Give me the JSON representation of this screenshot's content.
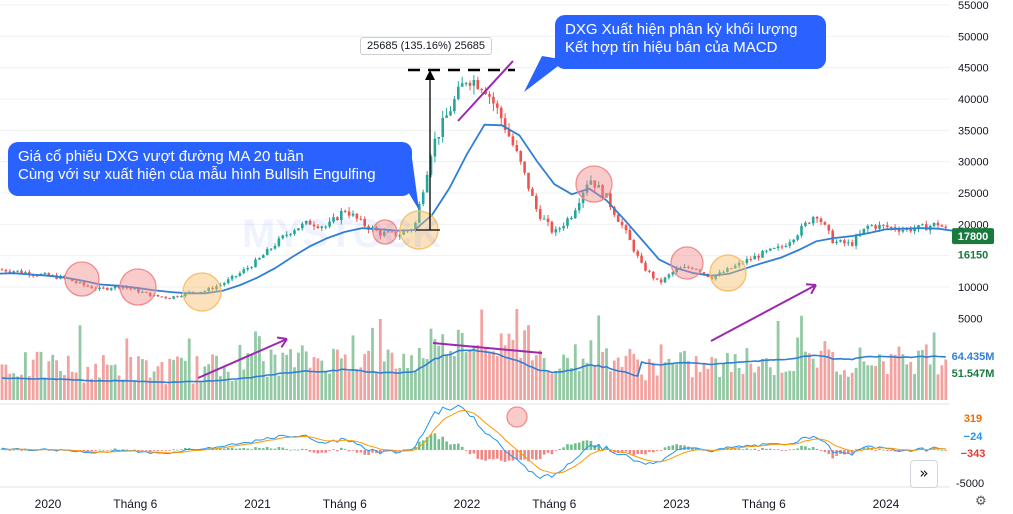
{
  "chart_data": {
    "type": "candlestick",
    "ticker": "DXG",
    "price_axis": {
      "ticks": [
        5000,
        10000,
        15000,
        20000,
        25000,
        30000,
        35000,
        40000,
        45000,
        50000,
        55000
      ],
      "tick_labels": [
        "5000",
        "10000",
        "15000",
        "20000",
        "25000",
        "30000",
        "35000",
        "40000",
        "45000",
        "50000",
        "55000"
      ]
    },
    "macd_axis": {
      "ticks": [
        -5000
      ],
      "tick_labels": [
        "-5000"
      ]
    },
    "x_axis": {
      "ticks": [
        "2020-01",
        "2020-06",
        "2021-01",
        "2021-06",
        "2022-01",
        "2022-06",
        "2023-01",
        "2023-06",
        "2024-01"
      ],
      "tick_labels": [
        "2020",
        "Tháng 6",
        "2021",
        "Tháng 6",
        "2022",
        "Tháng 6",
        "2023",
        "Tháng 6",
        "2024"
      ]
    },
    "price_series": {
      "dates": [
        "2019-10",
        "2019-11",
        "2019-12",
        "2020-01",
        "2020-02",
        "2020-03",
        "2020-04",
        "2020-05",
        "2020-06",
        "2020-07",
        "2020-08",
        "2020-09",
        "2020-10",
        "2020-11",
        "2020-12",
        "2021-01",
        "2021-02",
        "2021-03",
        "2021-04",
        "2021-05",
        "2021-06",
        "2021-07",
        "2021-08",
        "2021-09",
        "2021-10",
        "2021-11",
        "2021-12",
        "2022-01",
        "2022-02",
        "2022-03",
        "2022-04",
        "2022-05",
        "2022-06",
        "2022-07",
        "2022-08",
        "2022-09",
        "2022-10",
        "2022-11",
        "2022-12",
        "2023-01",
        "2023-02",
        "2023-03",
        "2023-04",
        "2023-05",
        "2023-06",
        "2023-07",
        "2023-08",
        "2023-09",
        "2023-10",
        "2023-11",
        "2023-12",
        "2024-01",
        "2024-02",
        "2024-03",
        "2024-04",
        "2024-05"
      ],
      "close": [
        12800,
        12600,
        12200,
        11800,
        11400,
        10300,
        9600,
        10200,
        9500,
        8600,
        8300,
        9100,
        9400,
        10500,
        12200,
        14200,
        16800,
        19200,
        20300,
        19600,
        22400,
        20100,
        18600,
        18300,
        19600,
        32400,
        38200,
        43500,
        42100,
        36800,
        30200,
        22200,
        18500,
        21600,
        27500,
        24200,
        19200,
        13500,
        10600,
        12800,
        13200,
        11500,
        12800,
        14200,
        15400,
        16300,
        18800,
        21800,
        17200,
        16800,
        19800,
        19600,
        19200,
        19400,
        20100,
        17800
      ],
      "ma20": [
        12100,
        12200,
        12000,
        11800,
        11500,
        11000,
        10400,
        10200,
        9900,
        9500,
        9200,
        9000,
        9000,
        9400,
        10300,
        11500,
        13000,
        14800,
        16500,
        17800,
        18800,
        19400,
        19200,
        19000,
        19100,
        21500,
        25800,
        31200,
        35900,
        35800,
        34200,
        30100,
        26400,
        24800,
        25700,
        23800,
        20800,
        17600,
        14400,
        13000,
        12200,
        11800,
        12100,
        13000,
        13900,
        14700,
        15900,
        17300,
        17800,
        18100,
        18600,
        19200,
        19300,
        19400,
        19300,
        18900
      ]
    },
    "last_price_label": "17800",
    "ma_label": "16150",
    "volume": {
      "labels": [
        "64.435M",
        "51.547M"
      ],
      "ma_color": "#2f7fd6"
    },
    "macd": {
      "labels": [
        "319",
        "−24",
        "−343"
      ],
      "macd_color": "#2196f3",
      "signal_color": "#ff9800"
    },
    "measure_label": "25685 (135.16%) 25685",
    "annotations": [
      "Giá cổ phiếu DXG vượt đường MA 20 tuần\nCùng với sự xuất hiện của mẫu hình Bullsih Engulfing",
      "DXG Xuất hiện phân kỳ khối lượng\nKết hợp tín hiệu bán của MACD"
    ],
    "colors": {
      "up": "#26a69a",
      "down": "#ef5350",
      "ma": "#2f7fd6",
      "annotation_bg": "#2962ff",
      "arrow": "#9c27b0",
      "circle_red": "#f28b8b",
      "circle_orange": "#f6bf6a"
    },
    "watermark": "MYSTOCK"
  },
  "ui": {
    "nav_icon": "double-chevron-right-icon",
    "settings_icon": "gear-icon"
  }
}
